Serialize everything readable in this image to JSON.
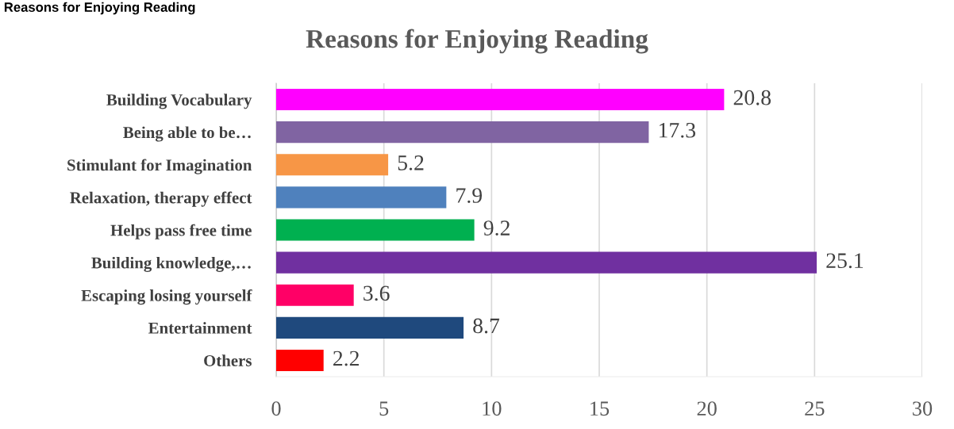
{
  "chart_data": {
    "type": "bar",
    "orientation": "horizontal",
    "title": "Reasons for Enjoying Reading",
    "annotations": [
      "Reasons for Enjoying Reading"
    ],
    "categories": [
      "Building Vocabulary",
      "Being able to be…",
      "Stimulant for Imagination",
      "Relaxation, therapy effect",
      "Helps pass free time",
      "Building knowledge,…",
      "Escaping losing yourself",
      "Entertainment",
      "Others"
    ],
    "values": [
      20.8,
      17.3,
      5.2,
      7.9,
      9.2,
      25.1,
      3.6,
      8.7,
      2.2
    ],
    "colors": [
      "#ff00ff",
      "#8064a2",
      "#f79646",
      "#4f81bd",
      "#00b050",
      "#7030a0",
      "#ff0066",
      "#1f497d",
      "#ff0000"
    ],
    "xlim": [
      0,
      30
    ],
    "xticks": [
      0,
      5,
      10,
      15,
      20,
      25,
      30
    ],
    "grid": "x",
    "data_labels": true
  }
}
